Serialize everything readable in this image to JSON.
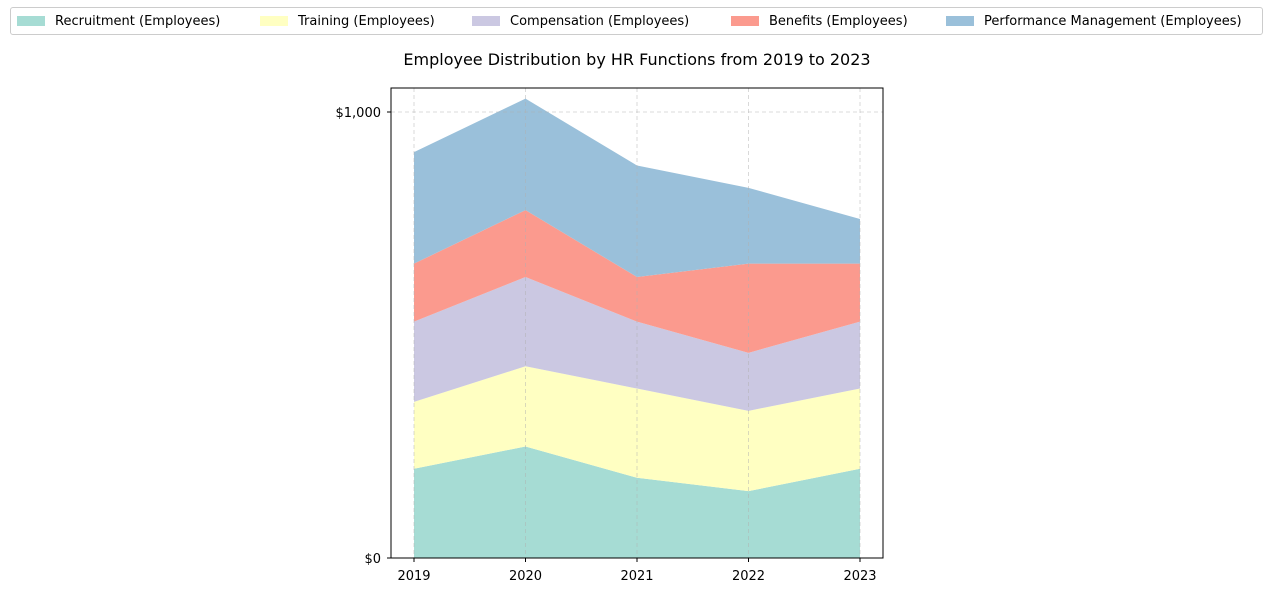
{
  "chart_data": {
    "type": "area",
    "stacked": true,
    "title": "Employee Distribution by HR Functions from 2019 to 2023",
    "xlabel": "",
    "ylabel": "",
    "categories": [
      "2019",
      "2020",
      "2021",
      "2022",
      "2023"
    ],
    "ylim": [
      0,
      1000
    ],
    "y_tick_labels": [
      "$0",
      "$1,000"
    ],
    "grid": true,
    "legend_position": "top",
    "series": [
      {
        "name": "Recruitment (Employees)",
        "color": "#a6dcd4",
        "values": [
          200,
          250,
          180,
          150,
          200
        ]
      },
      {
        "name": "Training (Employees)",
        "color": "#ffffc2",
        "values": [
          150,
          180,
          200,
          180,
          180
        ]
      },
      {
        "name": "Compensation (Employees)",
        "color": "#cbc8e2",
        "values": [
          180,
          200,
          150,
          130,
          150
        ]
      },
      {
        "name": "Benefits (Employees)",
        "color": "#fb9a8e",
        "values": [
          130,
          150,
          100,
          200,
          130
        ]
      },
      {
        "name": "Performance Management (Employees)",
        "color": "#9ac0da",
        "values": [
          250,
          250,
          250,
          170,
          100
        ]
      }
    ]
  }
}
